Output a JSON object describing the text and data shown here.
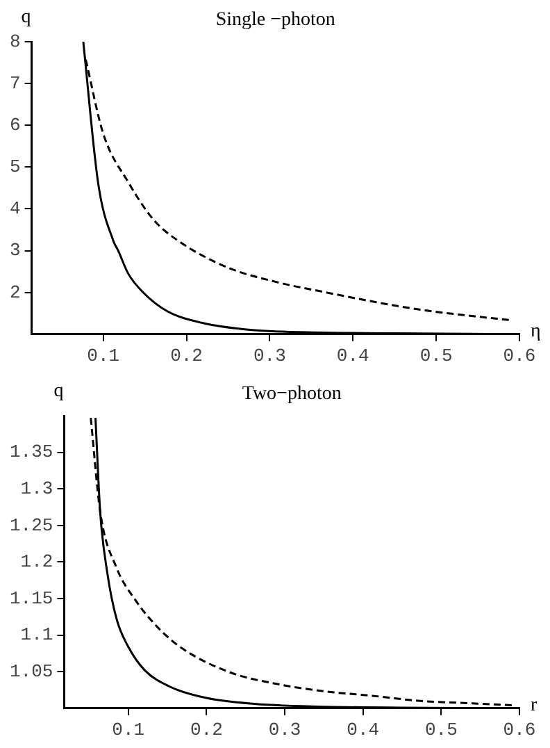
{
  "chart_data": [
    {
      "type": "line",
      "title": "Single −photon",
      "xlabel": "η",
      "ylabel": "q",
      "xlim": [
        0.014,
        0.6
      ],
      "ylim": [
        1,
        8
      ],
      "xticks": [
        0.1,
        0.2,
        0.3,
        0.4,
        0.5,
        0.6
      ],
      "yticks": [
        2,
        3,
        4,
        5,
        6,
        7,
        8
      ],
      "grid": false,
      "legend": false,
      "marker": "none",
      "series": [
        {
          "color": "#000000",
          "line_style": "solid",
          "x": [
            0.076,
            0.094,
            0.112,
            0.118,
            0.13,
            0.148,
            0.177,
            0.219,
            0.279,
            0.368,
            0.45,
            0.6
          ],
          "values": [
            8,
            4.6,
            3.24,
            3.0,
            2.45,
            2.0,
            1.55,
            1.27,
            1.1,
            1.04,
            1.02,
            1.0
          ]
        },
        {
          "color": "#000000",
          "line_style": "dashed",
          "x": [
            0.079,
            0.1,
            0.13,
            0.16,
            0.189,
            0.249,
            0.308,
            0.368,
            0.427,
            0.487,
            0.546,
            0.588
          ],
          "values": [
            7.57,
            5.8,
            4.64,
            3.75,
            3.25,
            2.6,
            2.25,
            2.0,
            1.77,
            1.57,
            1.43,
            1.34
          ]
        }
      ]
    },
    {
      "type": "line",
      "title": "Two−photon",
      "xlabel": "r",
      "ylabel": "q",
      "xlim": [
        0.018,
        0.6
      ],
      "ylim": [
        1,
        1.4
      ],
      "xticks": [
        0.1,
        0.2,
        0.3,
        0.4,
        0.5,
        0.6
      ],
      "yticks": [
        1.05,
        1.1,
        1.15,
        1.2,
        1.25,
        1.3,
        1.35
      ],
      "grid": false,
      "legend": false,
      "marker": "none",
      "series": [
        {
          "color": "#000000",
          "line_style": "solid",
          "x": [
            0.058,
            0.064,
            0.073,
            0.085,
            0.1,
            0.121,
            0.152,
            0.2,
            0.261,
            0.352,
            0.6
          ],
          "values": [
            1.397,
            1.269,
            1.186,
            1.122,
            1.084,
            1.052,
            1.03,
            1.014,
            1.006,
            1.002,
            1.0
          ]
        },
        {
          "color": "#000000",
          "line_style": "dashed",
          "x": [
            0.052,
            0.064,
            0.085,
            0.109,
            0.139,
            0.17,
            0.23,
            0.291,
            0.352,
            0.412,
            0.473,
            0.533,
            0.594
          ],
          "values": [
            1.397,
            1.269,
            1.192,
            1.148,
            1.109,
            1.081,
            1.049,
            1.033,
            1.023,
            1.017,
            1.01,
            1.007,
            1.004
          ]
        }
      ]
    }
  ]
}
